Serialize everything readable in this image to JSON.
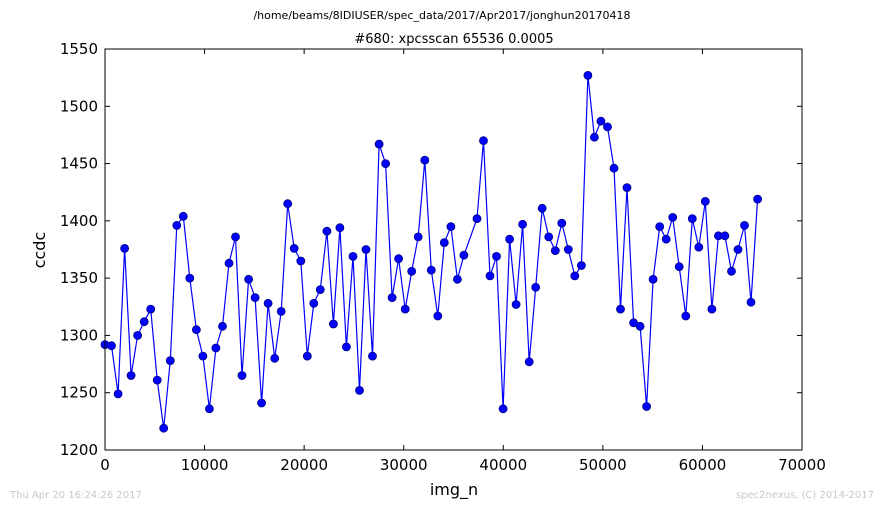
{
  "page": {
    "path": "/home/beams/8IDIUSER/spec_data/2017/Apr2017/jonghun20170418",
    "timestamp": "Thu Apr 20 16:24:26 2017",
    "credit": "spec2nexus, (C) 2014-2017"
  },
  "colors": {
    "line": "#0000ff",
    "marker_fill": "#0000ff",
    "marker_edge": "#000080",
    "footer_text": "#c8c8c8"
  },
  "chart_data": {
    "type": "line",
    "title": "#680: xpcsscan 65536 0.0005",
    "xlabel": "img_n",
    "ylabel": "ccdc",
    "xlim": [
      0,
      70000
    ],
    "ylim": [
      1200,
      1550
    ],
    "xticks": [
      0,
      10000,
      20000,
      30000,
      40000,
      50000,
      60000,
      70000
    ],
    "yticks": [
      1200,
      1250,
      1300,
      1350,
      1400,
      1450,
      1500,
      1550
    ],
    "grid": false,
    "markers": "circle",
    "series": [
      {
        "x": [
          0,
          655,
          1311,
          1966,
          2621,
          3277,
          3932,
          4588,
          5243,
          5898,
          6554,
          7209,
          7864,
          8520,
          9175,
          9830,
          10486,
          11141,
          11796,
          12452,
          13107,
          13762,
          14418,
          15073,
          15729,
          16384,
          17039,
          17695,
          18350,
          19005,
          19661,
          20316,
          20972,
          21627,
          22282,
          22938,
          23593,
          24248,
          24904,
          25559,
          26214,
          26870,
          27525,
          28180,
          28836,
          29491,
          30147,
          30802,
          31457,
          32113,
          32768,
          33423,
          34079,
          34734,
          35389,
          36045,
          37356,
          38011,
          38666,
          39322,
          39977,
          40632,
          41288,
          41943,
          42598,
          43254,
          43909,
          44564,
          45220,
          45875,
          46531,
          47186,
          47841,
          48497,
          49152,
          49807,
          50463,
          51118,
          51773,
          52429,
          53084,
          53740,
          54395,
          55050,
          55706,
          56361,
          57016,
          57672,
          58327,
          58982,
          59638,
          60293,
          60948,
          61604,
          62259,
          62915,
          63570,
          64225,
          64881,
          65536
        ],
        "y": [
          1292,
          1291,
          1249,
          1376,
          1265,
          1300,
          1312,
          1323,
          1261,
          1219,
          1278,
          1396,
          1404,
          1350,
          1305,
          1282,
          1236,
          1289,
          1308,
          1363,
          1386,
          1265,
          1349,
          1333,
          1241,
          1328,
          1280,
          1321,
          1415,
          1376,
          1365,
          1282,
          1328,
          1340,
          1391,
          1310,
          1394,
          1290,
          1369,
          1252,
          1375,
          1282,
          1467,
          1450,
          1333,
          1367,
          1323,
          1356,
          1386,
          1453,
          1357,
          1317,
          1381,
          1395,
          1349,
          1370,
          1402,
          1470,
          1352,
          1369,
          1236,
          1384,
          1327,
          1397,
          1277,
          1342,
          1411,
          1386,
          1374,
          1398,
          1375,
          1352,
          1361,
          1527,
          1473,
          1487,
          1482,
          1446,
          1323,
          1429,
          1311,
          1308,
          1238,
          1349,
          1395,
          1384,
          1403,
          1360,
          1317,
          1402,
          1377,
          1417,
          1323,
          1387,
          1387,
          1356,
          1375,
          1396,
          1329,
          1419
        ]
      }
    ]
  }
}
